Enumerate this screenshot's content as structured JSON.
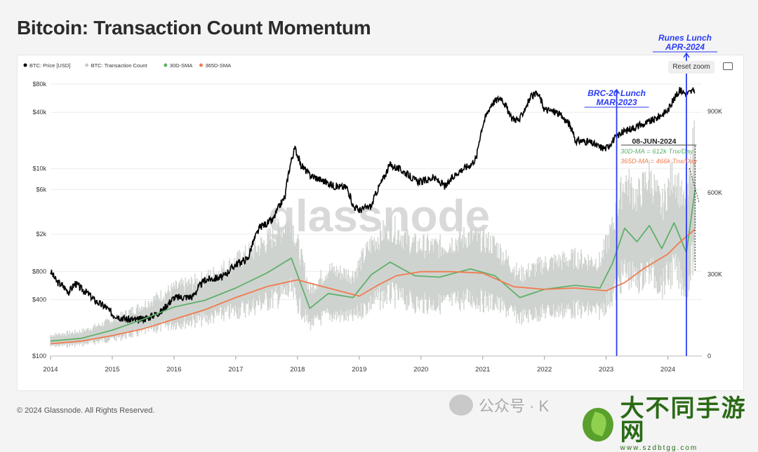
{
  "title": "Bitcoin: Transaction Count Momentum",
  "legend": [
    {
      "label": "BTC: Price [USD]",
      "color": "#000000"
    },
    {
      "label": "BTC: Transaction Count",
      "color": "#c9c9c9"
    },
    {
      "label": "30D-SMA",
      "color": "#5fb06a"
    },
    {
      "label": "365D-SMA",
      "color": "#f07b50"
    }
  ],
  "reset_zoom": "Reset zoom",
  "watermark": "glassnode",
  "footer": "© 2024 Glassnode. All Rights Reserved.",
  "wechat_text": "公众号 · K",
  "brand_name": "大不同手游网",
  "brand_url": "www.szdbtgg.com",
  "chart_data": {
    "type": "line",
    "title": "Bitcoin: Transaction Count Momentum",
    "x_ticks": [
      "2014",
      "2015",
      "2016",
      "2017",
      "2018",
      "2019",
      "2020",
      "2021",
      "2022",
      "2023",
      "2024"
    ],
    "left_axis_ticks": [
      "$80k",
      "$40k",
      "$10k",
      "$6k",
      "$2k",
      "$800",
      "$400",
      "$100"
    ],
    "left_axis_values": [
      80000,
      40000,
      10000,
      6000,
      2000,
      800,
      400,
      100
    ],
    "right_axis_ticks": [
      "900K",
      "600K",
      "300K",
      "0"
    ],
    "right_axis_values": [
      900000,
      600000,
      300000,
      0
    ],
    "ylim_left": [
      100,
      80000
    ],
    "ylim_right": [
      0,
      1000000
    ],
    "series": [
      {
        "name": "BTC: Price [USD]",
        "axis": "left",
        "color": "#000000",
        "x": [
          2014.0,
          2014.1,
          2014.2,
          2014.3,
          2014.4,
          2014.5,
          2014.6,
          2014.7,
          2014.8,
          2014.9,
          2015.0,
          2015.2,
          2015.4,
          2015.6,
          2015.8,
          2016.0,
          2016.3,
          2016.5,
          2016.8,
          2017.0,
          2017.2,
          2017.4,
          2017.6,
          2017.8,
          2017.96,
          2018.05,
          2018.2,
          2018.4,
          2018.6,
          2018.8,
          2018.9,
          2019.0,
          2019.2,
          2019.4,
          2019.5,
          2019.7,
          2019.9,
          2020.0,
          2020.2,
          2020.4,
          2020.6,
          2020.8,
          2020.9,
          2021.0,
          2021.15,
          2021.3,
          2021.45,
          2021.6,
          2021.8,
          2021.9,
          2022.0,
          2022.2,
          2022.4,
          2022.5,
          2022.7,
          2022.9,
          2023.0,
          2023.2,
          2023.4,
          2023.6,
          2023.8,
          2024.0,
          2024.2,
          2024.3,
          2024.44
        ],
        "values": [
          800,
          620,
          560,
          480,
          600,
          520,
          470,
          400,
          360,
          330,
          280,
          250,
          240,
          260,
          300,
          420,
          430,
          650,
          700,
          950,
          1100,
          2400,
          2800,
          5000,
          16500,
          11000,
          8500,
          7500,
          6500,
          6300,
          4000,
          3600,
          4000,
          8000,
          11000,
          9500,
          7500,
          7200,
          8000,
          6400,
          9200,
          11000,
          13000,
          29000,
          50000,
          58000,
          35000,
          33000,
          60000,
          62000,
          43000,
          40000,
          30000,
          20000,
          19500,
          17000,
          16500,
          23000,
          27000,
          29500,
          34000,
          42000,
          69000,
          63000,
          69000
        ]
      },
      {
        "name": "30D-SMA",
        "axis": "right",
        "color": "#5fb06a",
        "x": [
          2014.0,
          2014.5,
          2015.0,
          2015.5,
          2016.0,
          2016.5,
          2017.0,
          2017.5,
          2017.9,
          2018.2,
          2018.5,
          2018.9,
          2019.2,
          2019.5,
          2019.9,
          2020.3,
          2020.8,
          2021.2,
          2021.6,
          2022.0,
          2022.5,
          2022.9,
          2023.1,
          2023.3,
          2023.5,
          2023.7,
          2023.9,
          2024.1,
          2024.3,
          2024.44
        ],
        "values": [
          55000,
          65000,
          95000,
          135000,
          180000,
          205000,
          250000,
          305000,
          360000,
          175000,
          230000,
          215000,
          300000,
          345000,
          295000,
          290000,
          320000,
          295000,
          215000,
          245000,
          260000,
          250000,
          340000,
          470000,
          420000,
          480000,
          395000,
          490000,
          380000,
          612000
        ]
      },
      {
        "name": "365D-SMA",
        "axis": "right",
        "color": "#f07b50",
        "x": [
          2014.0,
          2014.5,
          2015.0,
          2015.5,
          2016.0,
          2016.5,
          2017.0,
          2017.5,
          2018.0,
          2018.5,
          2019.0,
          2019.3,
          2019.6,
          2020.0,
          2020.5,
          2021.0,
          2021.5,
          2022.0,
          2022.5,
          2023.0,
          2023.3,
          2023.6,
          2024.0,
          2024.2,
          2024.44
        ],
        "values": [
          45000,
          55000,
          75000,
          100000,
          135000,
          170000,
          215000,
          255000,
          280000,
          250000,
          220000,
          260000,
          295000,
          310000,
          310000,
          305000,
          255000,
          245000,
          250000,
          240000,
          270000,
          320000,
          375000,
          420000,
          466000
        ]
      }
    ],
    "annotations": [
      {
        "text": "BRC-20 Lunch",
        "subtext": "MAR-2023",
        "x": 2023.17
      },
      {
        "text": "Runes Lunch",
        "subtext": "APR-2024",
        "x": 2024.3
      },
      {
        "text": "08-JUN-2024",
        "x": 2024.44
      },
      {
        "text": "30D-MA = 612k Tnx/Day",
        "color": "#5fb06a"
      },
      {
        "text": "365D-MA = 466k Tnx/Day",
        "color": "#f07b50"
      }
    ]
  }
}
